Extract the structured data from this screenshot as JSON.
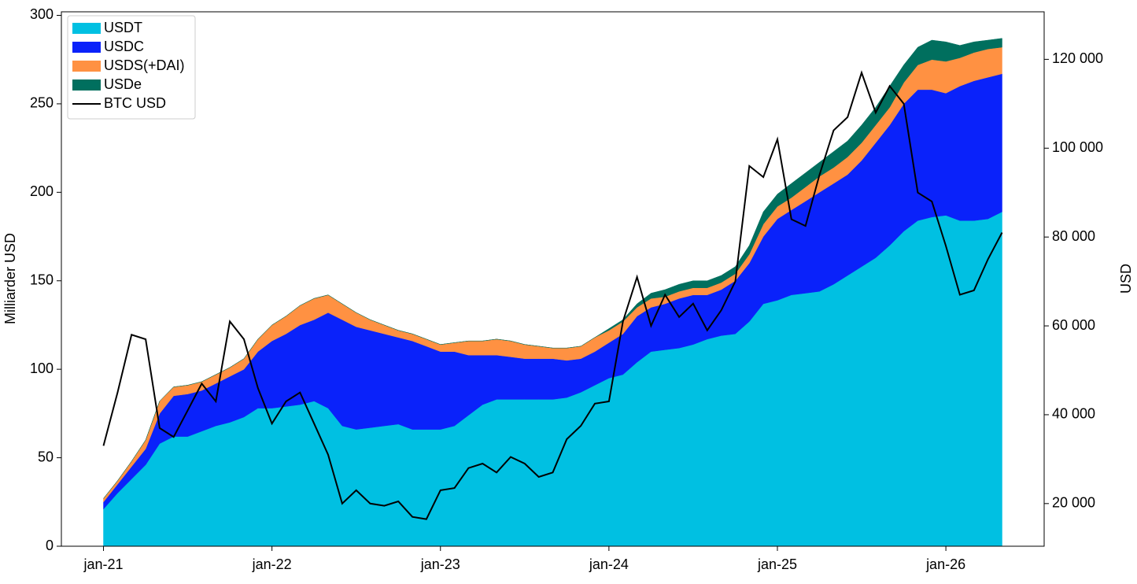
{
  "chart_data": {
    "type": "stacked-area-line",
    "x": [
      "2021-01",
      "2021-02",
      "2021-03",
      "2021-04",
      "2021-05",
      "2021-06",
      "2021-07",
      "2021-08",
      "2021-09",
      "2021-10",
      "2021-11",
      "2021-12",
      "2022-01",
      "2022-02",
      "2022-03",
      "2022-04",
      "2022-05",
      "2022-06",
      "2022-07",
      "2022-08",
      "2022-09",
      "2022-10",
      "2022-11",
      "2022-12",
      "2023-01",
      "2023-02",
      "2023-03",
      "2023-04",
      "2023-05",
      "2023-06",
      "2023-07",
      "2023-08",
      "2023-09",
      "2023-10",
      "2023-11",
      "2023-12",
      "2024-01",
      "2024-02",
      "2024-03",
      "2024-04",
      "2024-05",
      "2024-06",
      "2024-07",
      "2024-08",
      "2024-09",
      "2024-10",
      "2024-11",
      "2024-12",
      "2025-01",
      "2025-02",
      "2025-03",
      "2025-04",
      "2025-05",
      "2025-06",
      "2025-07",
      "2025-08",
      "2025-09",
      "2025-10",
      "2025-11",
      "2025-12",
      "2026-01",
      "2026-02",
      "2026-03",
      "2026-04",
      "2026-05"
    ],
    "xlim": [
      "2020-10",
      "2026-08"
    ],
    "xticks": [
      {
        "value": "2021-01",
        "label": "jan-21"
      },
      {
        "value": "2022-01",
        "label": "jan-22"
      },
      {
        "value": "2023-01",
        "label": "jan-23"
      },
      {
        "value": "2024-01",
        "label": "jan-24"
      },
      {
        "value": "2025-01",
        "label": "jan-25"
      },
      {
        "value": "2026-01",
        "label": "jan-26"
      }
    ],
    "ylabel": "Milliarder USD",
    "ylim": [
      0,
      302
    ],
    "yticks": [
      0,
      50,
      100,
      150,
      200,
      250,
      300
    ],
    "y2label": "USD",
    "y2lim": [
      10400,
      130700
    ],
    "y2ticks": [
      {
        "value": 20000,
        "label": "20 000"
      },
      {
        "value": 40000,
        "label": "40 000"
      },
      {
        "value": 60000,
        "label": "60 000"
      },
      {
        "value": 80000,
        "label": "80 000"
      },
      {
        "value": 100000,
        "label": "100 000"
      },
      {
        "value": 120000,
        "label": "120 000"
      }
    ],
    "legend": "upper left",
    "series": [
      {
        "name": "USDT",
        "color": "#00c0e2",
        "values": [
          21,
          30,
          38,
          46,
          58,
          62,
          62,
          65,
          68,
          70,
          73,
          78,
          78,
          79,
          80,
          82,
          78,
          68,
          66,
          67,
          68,
          69,
          66,
          66,
          66,
          68,
          74,
          80,
          83,
          83,
          83,
          83,
          83,
          84,
          87,
          91,
          95,
          97,
          104,
          110,
          111,
          112,
          114,
          117,
          119,
          120,
          127,
          137,
          139,
          142,
          143,
          144,
          148,
          153,
          158,
          163,
          170,
          178,
          184,
          186,
          187,
          184,
          184,
          185,
          189
        ]
      },
      {
        "name": "USDC",
        "color": "#0a22fa",
        "values": [
          4,
          5,
          7,
          9,
          17,
          23,
          24,
          23,
          24,
          26,
          27,
          32,
          38,
          41,
          45,
          46,
          54,
          60,
          58,
          55,
          52,
          49,
          50,
          47,
          44,
          42,
          34,
          28,
          25,
          24,
          23,
          23,
          23,
          21,
          19,
          19,
          20,
          23,
          26,
          25,
          26,
          28,
          28,
          25,
          26,
          30,
          33,
          38,
          46,
          48,
          52,
          56,
          57,
          57,
          60,
          65,
          68,
          72,
          74,
          72,
          69,
          76,
          79,
          80,
          78
        ]
      },
      {
        "name": "USDS(+DAI)",
        "color": "#ff9142",
        "values": [
          2,
          2,
          3,
          5,
          7,
          5,
          5,
          5,
          5,
          5,
          6,
          7,
          9,
          10,
          11,
          12,
          10,
          9,
          8,
          6,
          5,
          4,
          4,
          4,
          4,
          5,
          8,
          8,
          9,
          9,
          8,
          7,
          6,
          7,
          7,
          8,
          7,
          7,
          5,
          5,
          4,
          4,
          4,
          4,
          4,
          4,
          5,
          7,
          7,
          7,
          8,
          9,
          9,
          10,
          10,
          10,
          10,
          12,
          14,
          17,
          18,
          16,
          16,
          16,
          15
        ]
      },
      {
        "name": "USDe",
        "color": "#006f5e",
        "values": [
          0,
          0,
          0,
          0,
          0,
          0,
          0,
          0,
          0,
          0,
          0,
          0,
          0,
          0,
          0,
          0,
          0,
          0,
          0,
          0,
          0,
          0,
          0,
          0,
          0,
          0,
          0,
          0,
          0,
          0,
          0,
          0,
          0,
          0,
          0,
          0,
          1,
          1,
          2,
          3,
          4,
          4,
          4,
          4,
          4,
          4,
          5,
          7,
          7,
          8,
          8,
          8,
          9,
          9,
          10,
          10,
          12,
          10,
          10,
          11,
          11,
          7,
          6,
          5,
          5
        ]
      },
      {
        "name": "BTC USD",
        "color": "#000000",
        "axis": "y2",
        "values": [
          33000,
          45000,
          58000,
          57000,
          37000,
          35000,
          41000,
          47000,
          43000,
          61000,
          57000,
          46000,
          38000,
          43000,
          45000,
          38000,
          31000,
          20000,
          23000,
          20000,
          19500,
          20500,
          17000,
          16500,
          23000,
          23500,
          28000,
          29000,
          27000,
          30500,
          29000,
          26000,
          27000,
          34500,
          37500,
          42500,
          43000,
          61000,
          71000,
          60000,
          67000,
          62000,
          65000,
          59000,
          63500,
          70000,
          96000,
          93500,
          102000,
          84000,
          82500,
          94000,
          104000,
          107000,
          117000,
          108000,
          114000,
          110000,
          90000,
          88000,
          78000,
          67000,
          68000,
          75000,
          81000
        ]
      }
    ]
  }
}
